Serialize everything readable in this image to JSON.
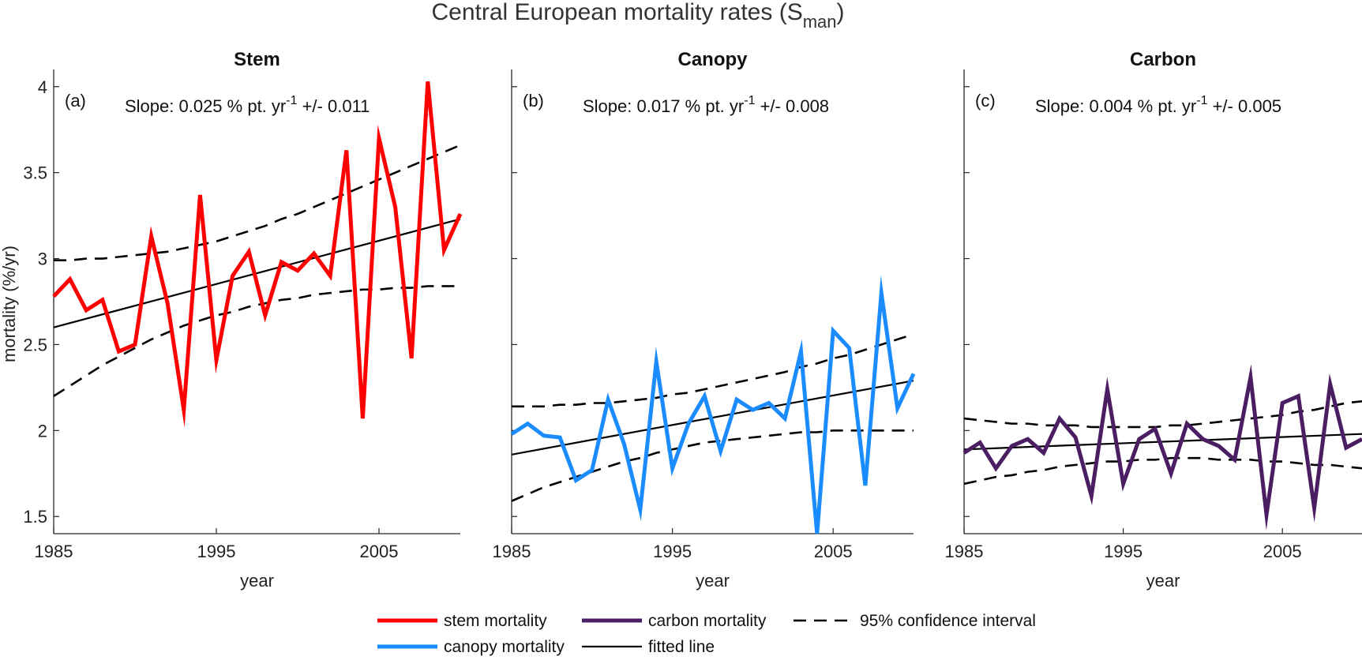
{
  "figure": {
    "title": "Central European mortality rates (S",
    "title_subscript": "man",
    "title_close": ")",
    "ylabel": "mortality (%/yr)",
    "xlabel": "year"
  },
  "legend": {
    "items": [
      {
        "label": "stem mortality",
        "style": "solid",
        "color": "#ff0000"
      },
      {
        "label": "carbon mortality",
        "style": "solid",
        "color": "#4b1e63"
      },
      {
        "label": "95% confidence interval",
        "style": "dashed",
        "color": "#000000"
      },
      {
        "label": "canopy mortality",
        "style": "solid",
        "color": "#1a8cff"
      },
      {
        "label": "fitted line",
        "style": "solid-thin",
        "color": "#000000"
      }
    ]
  },
  "chart_data": [
    {
      "type": "line",
      "title": "Stem",
      "panel_label": "(a)",
      "slope_text": "Slope: 0.025 % pt. yr",
      "slope_exp": "-1",
      "slope_err": " +/- 0.011",
      "xlim": [
        1985,
        2010
      ],
      "ylim": [
        1.4,
        4.1
      ],
      "xticks": [
        1985,
        1995,
        2005
      ],
      "yticks": [
        1.5,
        2,
        2.5,
        3,
        3.5,
        4
      ],
      "ytick_labels": [
        "1.5",
        "2",
        "2.5",
        "3",
        "3.5",
        "4"
      ],
      "show_ytick_labels": true,
      "x": [
        1985,
        1986,
        1987,
        1988,
        1989,
        1990,
        1991,
        1992,
        1993,
        1994,
        1995,
        1996,
        1997,
        1998,
        1999,
        2000,
        2001,
        2002,
        2003,
        2004,
        2005,
        2006,
        2007,
        2008,
        2009,
        2010
      ],
      "series": [
        {
          "name": "stem mortality",
          "color": "#ff0000",
          "values": [
            2.78,
            2.88,
            2.7,
            2.76,
            2.46,
            2.5,
            3.13,
            2.74,
            2.12,
            3.37,
            2.41,
            2.9,
            3.04,
            2.67,
            2.98,
            2.93,
            3.03,
            2.9,
            3.63,
            2.07,
            3.7,
            3.3,
            2.42,
            4.03,
            3.05,
            3.26
          ]
        }
      ],
      "fit": {
        "start": [
          1985,
          2.6
        ],
        "end": [
          2010,
          3.23
        ]
      },
      "ci_upper": [
        2.99,
        2.99,
        3.0,
        3.0,
        3.01,
        3.02,
        3.03,
        3.04,
        3.06,
        3.08,
        3.1,
        3.13,
        3.16,
        3.19,
        3.23,
        3.26,
        3.3,
        3.34,
        3.38,
        3.42,
        3.46,
        3.5,
        3.54,
        3.58,
        3.62,
        3.66
      ],
      "ci_lower": [
        2.2,
        2.26,
        2.32,
        2.38,
        2.43,
        2.48,
        2.53,
        2.57,
        2.61,
        2.64,
        2.67,
        2.69,
        2.72,
        2.74,
        2.76,
        2.77,
        2.79,
        2.8,
        2.81,
        2.82,
        2.82,
        2.83,
        2.83,
        2.84,
        2.84,
        2.84
      ]
    },
    {
      "type": "line",
      "title": "Canopy",
      "panel_label": "(b)",
      "slope_text": "Slope: 0.017 % pt. yr",
      "slope_exp": "-1",
      "slope_err": " +/- 0.008",
      "xlim": [
        1985,
        2010
      ],
      "ylim": [
        1.4,
        4.1
      ],
      "xticks": [
        1985,
        1995,
        2005
      ],
      "yticks": [
        1.5,
        2,
        2.5,
        3,
        3.5,
        4
      ],
      "ytick_labels": [
        "1.5",
        "2",
        "2.5",
        "3",
        "3.5",
        "4"
      ],
      "show_ytick_labels": false,
      "x": [
        1985,
        1986,
        1987,
        1988,
        1989,
        1990,
        1991,
        1992,
        1993,
        1994,
        1995,
        1996,
        1997,
        1998,
        1999,
        2000,
        2001,
        2002,
        2003,
        2004,
        2005,
        2006,
        2007,
        2008,
        2009,
        2010
      ],
      "series": [
        {
          "name": "canopy mortality",
          "color": "#1a8cff",
          "values": [
            1.98,
            2.04,
            1.97,
            1.96,
            1.71,
            1.77,
            2.18,
            1.92,
            1.54,
            2.4,
            1.78,
            2.04,
            2.2,
            1.88,
            2.18,
            2.12,
            2.16,
            2.07,
            2.46,
            1.4,
            2.58,
            2.48,
            1.68,
            2.8,
            2.13,
            2.33
          ]
        }
      ],
      "fit": {
        "start": [
          1985,
          1.86
        ],
        "end": [
          2010,
          2.29
        ]
      },
      "ci_upper": [
        2.14,
        2.14,
        2.14,
        2.15,
        2.15,
        2.16,
        2.16,
        2.17,
        2.18,
        2.19,
        2.21,
        2.22,
        2.24,
        2.26,
        2.28,
        2.3,
        2.32,
        2.34,
        2.37,
        2.39,
        2.42,
        2.44,
        2.47,
        2.5,
        2.53,
        2.56
      ],
      "ci_lower": [
        1.59,
        1.63,
        1.67,
        1.7,
        1.73,
        1.76,
        1.79,
        1.82,
        1.84,
        1.87,
        1.89,
        1.91,
        1.93,
        1.94,
        1.95,
        1.96,
        1.97,
        1.98,
        1.99,
        1.99,
        2.0,
        2.0,
        2.0,
        2.0,
        2.0,
        2.0
      ]
    },
    {
      "type": "line",
      "title": "Carbon",
      "panel_label": "(c)",
      "slope_text": "Slope: 0.004 % pt. yr",
      "slope_exp": "-1",
      "slope_err": " +/- 0.005",
      "xlim": [
        1985,
        2010
      ],
      "ylim": [
        1.4,
        4.1
      ],
      "xticks": [
        1985,
        1995,
        2005
      ],
      "yticks": [
        1.5,
        2,
        2.5,
        3,
        3.5,
        4
      ],
      "ytick_labels": [
        "1.5",
        "2",
        "2.5",
        "3",
        "3.5",
        "4"
      ],
      "show_ytick_labels": false,
      "x": [
        1985,
        1986,
        1987,
        1988,
        1989,
        1990,
        1991,
        1992,
        1993,
        1994,
        1995,
        1996,
        1997,
        1998,
        1999,
        2000,
        2001,
        2002,
        2003,
        2004,
        2005,
        2006,
        2007,
        2008,
        2009,
        2010
      ],
      "series": [
        {
          "name": "carbon mortality",
          "color": "#4b1e63",
          "values": [
            1.87,
            1.93,
            1.78,
            1.91,
            1.95,
            1.87,
            2.07,
            1.96,
            1.62,
            2.24,
            1.69,
            1.95,
            2.01,
            1.75,
            2.04,
            1.95,
            1.91,
            1.83,
            2.31,
            1.51,
            2.16,
            2.2,
            1.55,
            2.27,
            1.9,
            1.95
          ]
        }
      ],
      "fit": {
        "start": [
          1985,
          1.89
        ],
        "end": [
          2010,
          1.98
        ]
      },
      "ci_upper": [
        2.07,
        2.06,
        2.05,
        2.04,
        2.04,
        2.03,
        2.03,
        2.03,
        2.02,
        2.02,
        2.02,
        2.02,
        2.02,
        2.03,
        2.03,
        2.04,
        2.05,
        2.06,
        2.07,
        2.08,
        2.09,
        2.11,
        2.12,
        2.14,
        2.16,
        2.17
      ],
      "ci_lower": [
        1.69,
        1.71,
        1.73,
        1.74,
        1.76,
        1.77,
        1.79,
        1.8,
        1.81,
        1.82,
        1.82,
        1.83,
        1.83,
        1.84,
        1.84,
        1.84,
        1.83,
        1.83,
        1.83,
        1.82,
        1.82,
        1.81,
        1.8,
        1.8,
        1.79,
        1.78
      ]
    }
  ]
}
